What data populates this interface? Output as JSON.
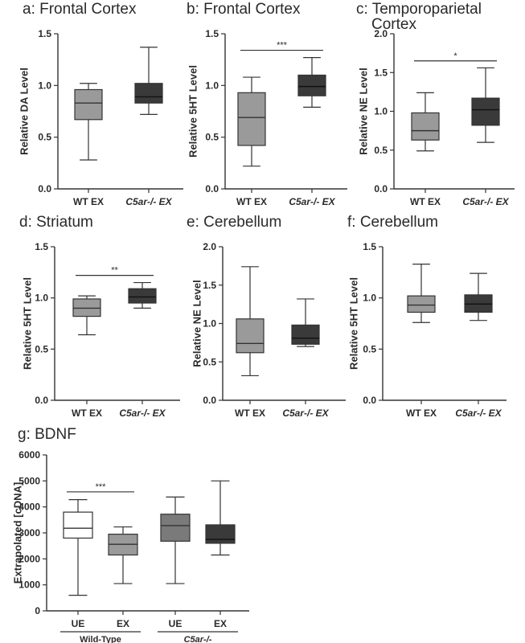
{
  "colors": {
    "wt_ex": "#9a9a9a",
    "c5ar_ex": "#3a3a3a",
    "wt_ue": "#ffffff",
    "c5ar_ue": "#7a7a7a",
    "stroke": "#333333"
  },
  "chart_data": [
    {
      "id": "a",
      "type": "box",
      "title": "a: Frontal Cortex",
      "ylabel": "Relative DA Level",
      "ylim": [
        0,
        1.5
      ],
      "yticks": [
        "0.0",
        "0.5",
        "1.0",
        "1.5"
      ],
      "categories": [
        "WT EX",
        "C5ar-/- EX"
      ],
      "boxes": [
        {
          "min": 0.28,
          "q1": 0.67,
          "median": 0.83,
          "q3": 0.96,
          "max": 1.02,
          "color": "#9a9a9a"
        },
        {
          "min": 0.72,
          "q1": 0.83,
          "median": 0.89,
          "q3": 1.02,
          "max": 1.37,
          "color": "#3a3a3a"
        }
      ],
      "significance": null
    },
    {
      "id": "b",
      "type": "box",
      "title": "b: Frontal Cortex",
      "ylabel": "Relative 5HT Level",
      "ylim": [
        0,
        1.5
      ],
      "yticks": [
        "0.0",
        "0.5",
        "1.0",
        "1.5"
      ],
      "categories": [
        "WT EX",
        "C5ar-/- EX"
      ],
      "boxes": [
        {
          "min": 0.22,
          "q1": 0.42,
          "median": 0.69,
          "q3": 0.93,
          "max": 1.08,
          "color": "#9a9a9a"
        },
        {
          "min": 0.79,
          "q1": 0.9,
          "median": 0.99,
          "q3": 1.1,
          "max": 1.27,
          "color": "#3a3a3a"
        }
      ],
      "significance": {
        "label": "***",
        "y": 1.34
      }
    },
    {
      "id": "c",
      "type": "box",
      "title": "c: Temporoparietal Cortex",
      "ylabel": "Relative NE Level",
      "ylim": [
        0,
        2.0
      ],
      "yticks": [
        "0.0",
        "0.5",
        "1.0",
        "1.5",
        "2.0"
      ],
      "categories": [
        "WT EX",
        "C5ar-/- EX"
      ],
      "boxes": [
        {
          "min": 0.49,
          "q1": 0.63,
          "median": 0.75,
          "q3": 0.98,
          "max": 1.24,
          "color": "#9a9a9a"
        },
        {
          "min": 0.6,
          "q1": 0.82,
          "median": 1.02,
          "q3": 1.17,
          "max": 1.56,
          "color": "#3a3a3a"
        }
      ],
      "significance": {
        "label": "*",
        "y": 1.65
      }
    },
    {
      "id": "d",
      "type": "box",
      "title": "d: Striatum",
      "ylabel": "Relative 5HT Level",
      "ylim": [
        0,
        1.5
      ],
      "yticks": [
        "0.0",
        "0.5",
        "1.0",
        "1.5"
      ],
      "categories": [
        "WT EX",
        "C5ar-/- EX"
      ],
      "boxes": [
        {
          "min": 0.64,
          "q1": 0.82,
          "median": 0.9,
          "q3": 0.99,
          "max": 1.02,
          "color": "#9a9a9a"
        },
        {
          "min": 0.9,
          "q1": 0.95,
          "median": 1.01,
          "q3": 1.09,
          "max": 1.15,
          "color": "#3a3a3a"
        }
      ],
      "significance": {
        "label": "**",
        "y": 1.22
      }
    },
    {
      "id": "e",
      "type": "box",
      "title": "e: Cerebellum",
      "ylabel": "Relative NE Level",
      "ylim": [
        0,
        2.0
      ],
      "yticks": [
        "0.0",
        "0.5",
        "1.0",
        "1.5",
        "2.0"
      ],
      "categories": [
        "WT EX",
        "C5ar-/- EX"
      ],
      "boxes": [
        {
          "min": 0.32,
          "q1": 0.62,
          "median": 0.74,
          "q3": 1.06,
          "max": 1.74,
          "color": "#9a9a9a"
        },
        {
          "min": 0.7,
          "q1": 0.73,
          "median": 0.81,
          "q3": 0.98,
          "max": 1.32,
          "color": "#3a3a3a"
        }
      ],
      "significance": null
    },
    {
      "id": "f",
      "type": "box",
      "title": "f: Cerebellum",
      "ylabel": "Relative 5HT Level",
      "ylim": [
        0,
        1.5
      ],
      "yticks": [
        "0.0",
        "0.5",
        "1.0",
        "1.5"
      ],
      "categories": [
        "WT EX",
        "C5ar-/- EX"
      ],
      "boxes": [
        {
          "min": 0.76,
          "q1": 0.86,
          "median": 0.93,
          "q3": 1.02,
          "max": 1.33,
          "color": "#9a9a9a"
        },
        {
          "min": 0.78,
          "q1": 0.86,
          "median": 0.94,
          "q3": 1.03,
          "max": 1.24,
          "color": "#3a3a3a"
        }
      ],
      "significance": null
    },
    {
      "id": "g",
      "type": "box",
      "title": "g: BDNF",
      "ylabel": "Extrapolated [cDNA]",
      "ylim": [
        0,
        6000
      ],
      "yticks": [
        "0",
        "1000",
        "2000",
        "3000",
        "4000",
        "5000",
        "6000"
      ],
      "categories": [
        "UE",
        "EX",
        "UE",
        "EX"
      ],
      "groups": [
        "Wild-Type",
        "C5ar-/-"
      ],
      "boxes": [
        {
          "min": 600,
          "q1": 2800,
          "median": 3180,
          "q3": 3800,
          "max": 4280,
          "color": "#ffffff"
        },
        {
          "min": 1050,
          "q1": 2150,
          "median": 2560,
          "q3": 2950,
          "max": 3230,
          "color": "#9a9a9a"
        },
        {
          "min": 1050,
          "q1": 2680,
          "median": 3280,
          "q3": 3720,
          "max": 4380,
          "color": "#7a7a7a"
        },
        {
          "min": 2150,
          "q1": 2600,
          "median": 2750,
          "q3": 3310,
          "max": 5000,
          "color": "#3a3a3a"
        }
      ],
      "significance": {
        "label": "***",
        "y": 4580,
        "from": 0,
        "to": 1
      }
    }
  ]
}
